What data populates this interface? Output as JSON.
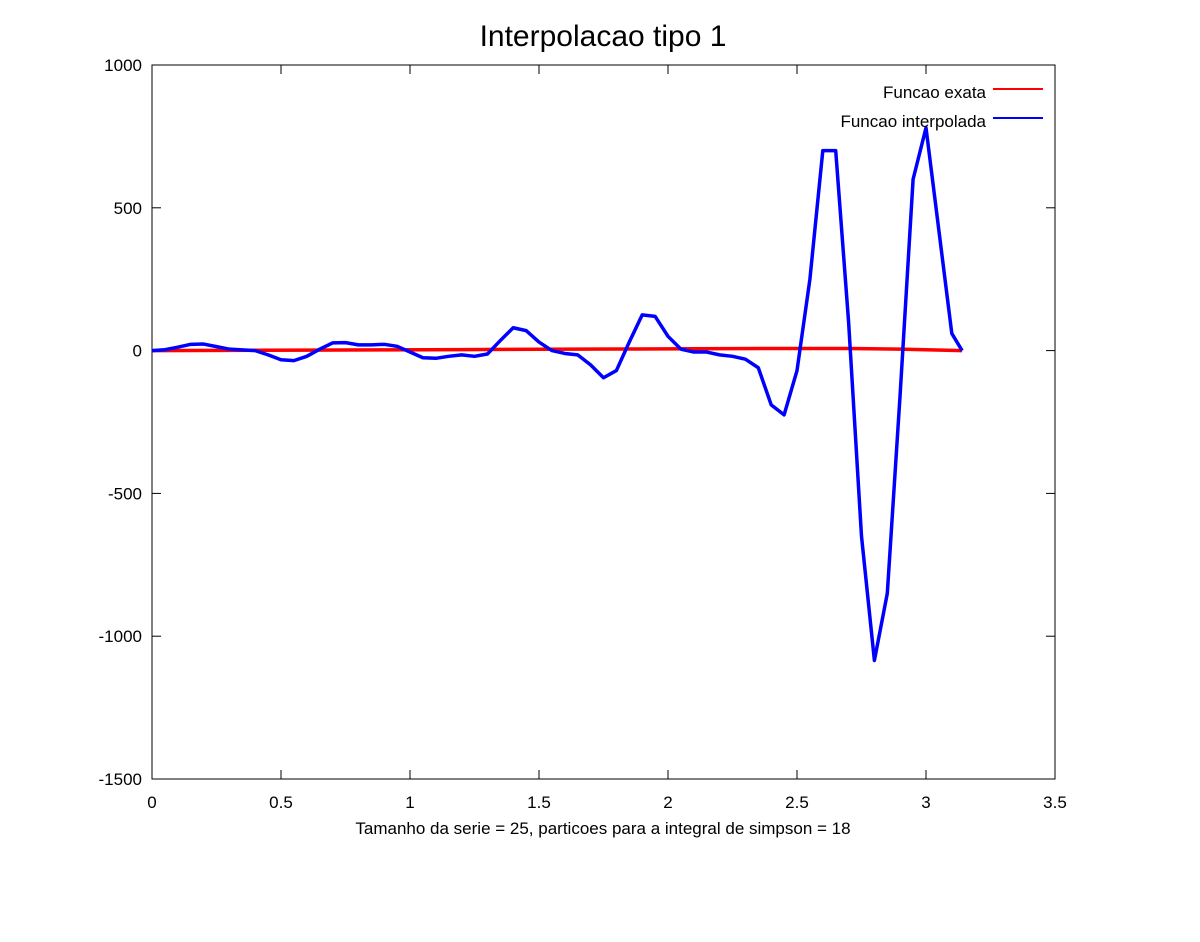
{
  "chart_data": {
    "type": "line",
    "title": "Interpolacao tipo 1",
    "xlabel": "Tamanho da serie = 25, particoes para a integral de simpson = 18",
    "ylabel": "",
    "xlim": [
      0,
      3.5
    ],
    "ylim": [
      -1500,
      1000
    ],
    "x_ticks": [
      "0",
      "0.5",
      "1",
      "1.5",
      "2",
      "2.5",
      "3",
      "3.5"
    ],
    "y_ticks": [
      "1000",
      "500",
      "0",
      "-500",
      "-1000",
      "-1500"
    ],
    "grid": false,
    "legend_position": "top-right",
    "series": [
      {
        "name": "Funcao exata",
        "color": "#ff0000",
        "points": [
          [
            0,
            0
          ],
          [
            0.3,
            0.9
          ],
          [
            0.6,
            1.7
          ],
          [
            0.9,
            2.5
          ],
          [
            1.2,
            3.5
          ],
          [
            1.5,
            4.5
          ],
          [
            1.8,
            5.5
          ],
          [
            2.1,
            6.5
          ],
          [
            2.4,
            7.5
          ],
          [
            2.7,
            7.5
          ],
          [
            2.9,
            5
          ],
          [
            3.14,
            0
          ]
        ]
      },
      {
        "name": "Funcao interpolada",
        "color": "#0000ff",
        "points": [
          [
            0,
            0
          ],
          [
            0.05,
            3
          ],
          [
            0.1,
            12
          ],
          [
            0.15,
            22
          ],
          [
            0.2,
            23
          ],
          [
            0.25,
            14
          ],
          [
            0.3,
            5
          ],
          [
            0.4,
            0
          ],
          [
            0.45,
            -15
          ],
          [
            0.5,
            -32
          ],
          [
            0.55,
            -35
          ],
          [
            0.6,
            -20
          ],
          [
            0.65,
            5
          ],
          [
            0.7,
            27
          ],
          [
            0.75,
            28
          ],
          [
            0.8,
            20
          ],
          [
            0.85,
            20
          ],
          [
            0.9,
            22
          ],
          [
            0.95,
            15
          ],
          [
            1.0,
            -5
          ],
          [
            1.05,
            -25
          ],
          [
            1.1,
            -27
          ],
          [
            1.15,
            -20
          ],
          [
            1.2,
            -15
          ],
          [
            1.25,
            -20
          ],
          [
            1.3,
            -12
          ],
          [
            1.35,
            35
          ],
          [
            1.4,
            80
          ],
          [
            1.45,
            70
          ],
          [
            1.5,
            30
          ],
          [
            1.55,
            0
          ],
          [
            1.6,
            -10
          ],
          [
            1.65,
            -15
          ],
          [
            1.7,
            -50
          ],
          [
            1.75,
            -95
          ],
          [
            1.8,
            -70
          ],
          [
            1.85,
            30
          ],
          [
            1.9,
            125
          ],
          [
            1.95,
            120
          ],
          [
            2.0,
            50
          ],
          [
            2.05,
            5
          ],
          [
            2.1,
            -5
          ],
          [
            2.15,
            -5
          ],
          [
            2.2,
            -15
          ],
          [
            2.25,
            -20
          ],
          [
            2.3,
            -30
          ],
          [
            2.35,
            -60
          ],
          [
            2.4,
            -190
          ],
          [
            2.45,
            -225
          ],
          [
            2.5,
            -70
          ],
          [
            2.55,
            250
          ],
          [
            2.6,
            700
          ],
          [
            2.65,
            700
          ],
          [
            2.7,
            100
          ],
          [
            2.75,
            -650
          ],
          [
            2.8,
            -1085
          ],
          [
            2.85,
            -850
          ],
          [
            2.9,
            -150
          ],
          [
            2.95,
            600
          ],
          [
            3.0,
            780
          ],
          [
            3.05,
            420
          ],
          [
            3.1,
            60
          ],
          [
            3.14,
            0
          ]
        ]
      }
    ]
  }
}
